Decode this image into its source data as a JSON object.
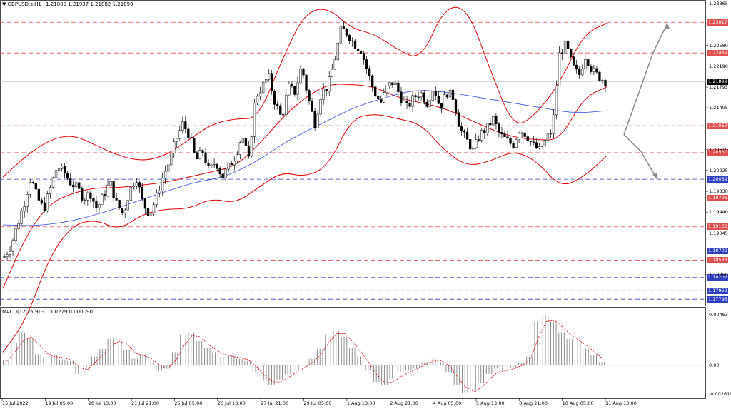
{
  "header": {
    "symbol": "GBPUSD.s,H1",
    "ohlc": "1.21889 1.21937 1.21882 1.21899",
    "macd_label": "MACD(12,26,9) -0.000279 0.000090"
  },
  "colors": {
    "candles": "#000000",
    "bollinger": "#e00000",
    "ma": "#3050e0",
    "resistance": "#e05050",
    "support": "#3040c0",
    "histogram": "#808080",
    "signal": "#e00000",
    "current": "#000000",
    "arrow": "#8a8a8a"
  },
  "chart_data": [
    {
      "type": "candlestick",
      "title": "GBPUSD.s,H1",
      "ohlc_last": {
        "open": 1.21889,
        "high": 1.21937,
        "low": 1.21882,
        "close": 1.21899
      },
      "y_ticks": [
        "1.23365",
        "1.22580",
        "1.22190",
        "1.21795",
        "1.21405",
        "1.20615",
        "1.20225",
        "1.19830",
        "1.19440",
        "1.19045",
        "1.18260"
      ],
      "ylim": [
        1.1772,
        1.2337
      ],
      "x_labels": [
        "15 Jul 2022",
        "19 Jul 05:00",
        "20 Jul 13:00",
        "21 Jul 21:00",
        "25 Jul 05:00",
        "26 Jul 13:00",
        "27 Jul 21:00",
        "29 Jul 05:00",
        "1 Aug 13:00",
        "2 Aug 21:00",
        "4 Aug 05:00",
        "5 Aug 13:00",
        "8 Aug 21:00",
        "10 Aug 05:00",
        "11 Aug 13:00"
      ],
      "current_price": "1.21899",
      "levels": [
        {
          "price": "1.23017",
          "kind": "resistance"
        },
        {
          "price": "1.22439",
          "kind": "resistance"
        },
        {
          "price": "1.21067",
          "kind": "resistance"
        },
        {
          "price": "1.20560",
          "kind": "resistance"
        },
        {
          "price": "1.20059",
          "kind": "support"
        },
        {
          "price": "1.19706",
          "kind": "resistance"
        },
        {
          "price": "1.19163",
          "kind": "resistance"
        },
        {
          "price": "1.18709",
          "kind": "support"
        },
        {
          "price": "1.18533",
          "kind": "resistance"
        },
        {
          "price": "1.18207",
          "kind": "support"
        },
        {
          "price": "1.17959",
          "kind": "support"
        },
        {
          "price": "1.17798",
          "kind": "support"
        }
      ],
      "price_path": [
        1.186,
        1.188,
        1.192,
        1.196,
        1.201,
        1.197,
        1.195,
        1.199,
        1.203,
        1.202,
        1.2,
        1.199,
        1.197,
        1.198,
        1.195,
        1.1975,
        1.2,
        1.196,
        1.194,
        1.1985,
        1.201,
        1.196,
        1.194,
        1.197,
        1.201,
        1.204,
        1.208,
        1.211,
        1.209,
        1.204,
        1.206,
        1.202,
        1.204,
        1.201,
        1.203,
        1.205,
        1.209,
        1.204,
        1.216,
        1.218,
        1.22,
        1.215,
        1.212,
        1.218,
        1.217,
        1.222,
        1.216,
        1.211,
        1.217,
        1.218,
        1.223,
        1.229,
        1.228,
        1.226,
        1.225,
        1.221,
        1.217,
        1.215,
        1.218,
        1.219,
        1.216,
        1.214,
        1.216,
        1.217,
        1.215,
        1.218,
        1.214,
        1.217,
        1.216,
        1.21,
        1.208,
        1.206,
        1.209,
        1.21,
        1.212,
        1.209,
        1.208,
        1.207,
        1.21,
        1.209,
        1.207,
        1.206,
        1.208,
        1.21,
        1.224,
        1.226,
        1.222,
        1.22,
        1.224,
        1.221,
        1.22,
        1.219
      ],
      "bollinger_upper": [
        1.201,
        1.205,
        1.208,
        1.209,
        1.207,
        1.205,
        1.204,
        1.205,
        1.208,
        1.211,
        1.212,
        1.212,
        1.223,
        1.232,
        1.233,
        1.229,
        1.228,
        1.225,
        1.223,
        1.233,
        1.233,
        1.221,
        1.21,
        1.213,
        1.219,
        1.228,
        1.23
      ],
      "bollinger_mid": [
        1.18,
        1.19,
        1.196,
        1.198,
        1.199,
        1.199,
        1.1995,
        1.2,
        1.201,
        1.202,
        1.203,
        1.207,
        1.212,
        1.216,
        1.2185,
        1.2185,
        1.218,
        1.216,
        1.215,
        1.214,
        1.212,
        1.21,
        1.2085,
        1.208,
        1.208,
        1.216,
        1.218
      ],
      "bollinger_lower": [
        1.168,
        1.174,
        1.186,
        1.192,
        1.193,
        1.191,
        1.194,
        1.195,
        1.195,
        1.197,
        1.196,
        1.199,
        1.202,
        1.201,
        1.203,
        1.212,
        1.213,
        1.212,
        1.211,
        1.206,
        1.203,
        1.204,
        1.206,
        1.204,
        1.199,
        1.201,
        1.205
      ],
      "ma_slow": [
        1.192,
        1.1918,
        1.1925,
        1.194,
        1.196,
        1.198,
        1.2,
        1.201,
        1.204,
        1.208,
        1.211,
        1.214,
        1.216,
        1.2175,
        1.217,
        1.216,
        1.215,
        1.214,
        1.213,
        1.2135
      ],
      "projection": [
        {
          "from": 1.209,
          "to": 1.23,
          "direction": "up"
        },
        {
          "from": 1.209,
          "to": 1.2005,
          "direction": "down"
        }
      ]
    },
    {
      "type": "bar",
      "title": "MACD(12,26,9)",
      "values_label": "-0.000279 0.000090",
      "y_ticks": [
        "0.00463",
        "0.00",
        "-0.002619"
      ],
      "ylim": [
        -0.0028,
        0.0048
      ],
      "macd": [
        0.0005,
        0.002,
        0.003,
        0.0025,
        0.001,
        0.0007,
        0.0009,
        0.0005,
        0.0004,
        -0.0008,
        -0.0004,
        0.0008,
        0.0015,
        0.0024,
        0.0022,
        0.0014,
        0.0006,
        0.001,
        0.0004,
        -0.0005,
        -0.0003,
        0.0012,
        0.0028,
        0.003,
        0.0022,
        0.0016,
        0.0012,
        0.0008,
        0.0009,
        0.0006,
        0.0004,
        -0.0006,
        -0.0014,
        -0.0018,
        -0.0013,
        -0.0008,
        -0.0004,
        0.0,
        0.0006,
        0.0015,
        0.0028,
        0.0031,
        0.0026,
        0.0016,
        0.0008,
        -0.0004,
        -0.0015,
        -0.0018,
        -0.0012,
        -0.0006,
        -0.0004,
        -0.0002,
        0.0003,
        0.0006,
        0.0003,
        -0.0006,
        -0.0018,
        -0.0025,
        -0.0024,
        -0.0016,
        -0.0008,
        -0.0003,
        -0.0005,
        -0.0002,
        0.0002,
        0.0008,
        0.004,
        0.0046,
        0.004,
        0.003,
        0.0024,
        0.002,
        0.0015,
        0.0009,
        0.0003
      ],
      "signal": [
        0.0004,
        0.0012,
        0.0022,
        0.0026,
        0.0019,
        0.0011,
        0.0008,
        0.0007,
        0.0005,
        -0.0002,
        -0.0004,
        0.0003,
        0.001,
        0.0018,
        0.0022,
        0.0019,
        0.0011,
        0.0009,
        0.0006,
        0.0,
        -0.0003,
        0.0005,
        0.0018,
        0.0027,
        0.0026,
        0.0019,
        0.0014,
        0.001,
        0.0008,
        0.0007,
        0.0005,
        -0.0001,
        -0.0009,
        -0.0015,
        -0.0015,
        -0.0011,
        -0.0006,
        -0.0002,
        0.0003,
        0.001,
        0.0021,
        0.0029,
        0.0029,
        0.0021,
        0.0012,
        0.0002,
        -0.0009,
        -0.0016,
        -0.0015,
        -0.001,
        -0.0006,
        -0.0003,
        0.0001,
        0.0004,
        0.0004,
        -0.0001,
        -0.0011,
        -0.002,
        -0.0024,
        -0.002,
        -0.0012,
        -0.0006,
        -0.0005,
        -0.0003,
        0.0,
        0.0005,
        0.0025,
        0.004,
        0.0041,
        0.0035,
        0.0028,
        0.0023,
        0.0018,
        0.0012,
        0.0006
      ]
    }
  ]
}
